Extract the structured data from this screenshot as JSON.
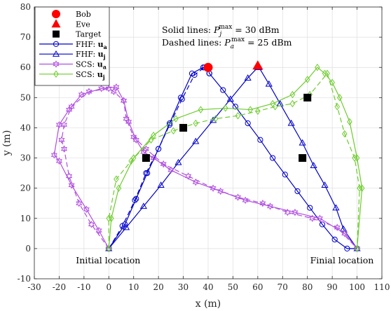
{
  "chart_data": {
    "type": "line",
    "xlabel": "x (m)",
    "ylabel": "y (m)",
    "xlim": [
      -30,
      110
    ],
    "ylim": [
      -10,
      80
    ],
    "xticks": [
      -30,
      -20,
      -10,
      0,
      10,
      20,
      30,
      40,
      50,
      60,
      70,
      80,
      90,
      100,
      110
    ],
    "yticks": [
      -10,
      0,
      10,
      20,
      30,
      40,
      50,
      60,
      70,
      80
    ],
    "grid": true,
    "legend": {
      "placement": "top-left",
      "entries": [
        {
          "key": "bob",
          "label": "Bob"
        },
        {
          "key": "eve",
          "label": "Eve"
        },
        {
          "key": "target",
          "label": "Target"
        },
        {
          "key": "fhf_ua",
          "label": "FHF: u",
          "sub": "a"
        },
        {
          "key": "fhf_uj",
          "label": "FHF: u",
          "sub": "j"
        },
        {
          "key": "scs_ua",
          "label": "SCS: u",
          "sub": "a"
        },
        {
          "key": "scs_uj",
          "label": "SCS: u",
          "sub": "j"
        }
      ]
    },
    "annotations": [
      {
        "prefix": "Solid lines: ",
        "sym": "P",
        "sub": "j",
        "sup": "max",
        "suffix": " = 30 dBm"
      },
      {
        "prefix": "Dashed lines: ",
        "sym": "P",
        "sub": "a",
        "sup": "max",
        "suffix": " = 25 dBm"
      }
    ],
    "location_labels": {
      "initial": {
        "text": "Initial location",
        "x": 0,
        "y": -4
      },
      "final": {
        "text": "Finial location",
        "x": 100,
        "y": -4
      }
    },
    "colors": {
      "fhf": "#0000cc",
      "scs_a": "#b14fe0",
      "scs_j": "#6dcc2c",
      "bob": "#ff0000",
      "eve": "#ff0000",
      "target": "#000000"
    },
    "points": {
      "bob": [
        40,
        60
      ],
      "eve": [
        60,
        60.5
      ],
      "targets": [
        [
          15,
          30
        ],
        [
          30,
          40
        ],
        [
          78,
          30
        ],
        [
          80,
          50
        ]
      ]
    },
    "series": [
      {
        "key": "fhf_ua_solid",
        "color": "#0000cc",
        "marker": "circle",
        "dashed": false,
        "x": [
          0,
          6.5,
          11,
          15.5,
          20,
          24.5,
          29,
          33.5,
          38,
          40,
          40.5,
          46,
          51,
          56,
          61,
          66,
          71,
          76,
          81,
          86,
          91,
          96,
          100
        ],
        "y": [
          0,
          8,
          16.5,
          25,
          33,
          41.5,
          50,
          58,
          60,
          60,
          58,
          52.5,
          47,
          41.5,
          36,
          30,
          24.5,
          19,
          13.5,
          8,
          3,
          0,
          0
        ]
      },
      {
        "key": "fhf_ua_dashed",
        "color": "#0000cc",
        "marker": "circle",
        "dashed": true,
        "x": [
          0,
          5.5,
          10.5,
          15,
          20,
          24.5,
          29.5,
          34.5,
          38.5,
          40,
          40.5
        ],
        "y": [
          0,
          7.5,
          16,
          25,
          33,
          41,
          49.5,
          57.5,
          60,
          60,
          58
        ]
      },
      {
        "key": "fhf_uj_solid",
        "color": "#0000cc",
        "marker": "triangle",
        "dashed": false,
        "x": [
          0,
          7,
          14,
          21,
          28,
          35,
          42,
          49,
          56,
          60,
          60.5,
          64.5,
          69,
          73.5,
          78,
          82.5,
          87,
          91.5,
          94.5,
          100
        ],
        "y": [
          0,
          7,
          14,
          21,
          28.5,
          35.5,
          42.5,
          49.5,
          56.5,
          60,
          60,
          54.5,
          48,
          41.5,
          35,
          27.5,
          21,
          13.5,
          6.5,
          0
        ]
      },
      {
        "key": "scs_ua_solid",
        "color": "#b14fe0",
        "marker": "hexagram",
        "dashed": false,
        "x": [
          0,
          -4,
          -9,
          -15,
          -20,
          -22,
          -20,
          -16,
          -11,
          -3,
          3,
          6,
          8,
          11,
          14,
          18,
          25,
          35,
          45,
          55,
          65,
          75,
          85,
          95,
          100
        ],
        "y": [
          0,
          6,
          13,
          21,
          29,
          31,
          41,
          46,
          51,
          53,
          53.5,
          49,
          42,
          36,
          32,
          30,
          26,
          22,
          19,
          16,
          14,
          12,
          10,
          5,
          0
        ]
      },
      {
        "key": "scs_ua_dashed",
        "color": "#b14fe0",
        "marker": "hexagram",
        "dashed": true,
        "x": [
          0,
          -7,
          -12,
          -16,
          -18,
          -19,
          -18,
          -15,
          -8,
          0,
          2,
          6,
          7,
          10,
          15,
          22,
          32,
          42,
          52,
          62,
          72,
          82,
          92,
          100
        ],
        "y": [
          0,
          8,
          15,
          24,
          33,
          36,
          41,
          47,
          52,
          53,
          52,
          49,
          43,
          37,
          33,
          28,
          24,
          20,
          17,
          15,
          12,
          10,
          7,
          0
        ]
      },
      {
        "key": "scs_uj_solid",
        "color": "#6dcc2c",
        "marker": "diamond",
        "dashed": false,
        "x": [
          0,
          1,
          4,
          10,
          18,
          27,
          37,
          47,
          57,
          66,
          74,
          80,
          84,
          87,
          90,
          93,
          97,
          100,
          102,
          100
        ],
        "y": [
          0,
          10,
          20,
          30,
          37.5,
          43,
          46,
          46.5,
          46,
          48,
          51,
          56,
          60,
          58,
          55,
          50,
          42,
          30,
          20,
          0
        ]
      },
      {
        "key": "scs_uj_dashed",
        "color": "#6dcc2c",
        "marker": "diamond",
        "dashed": true,
        "x": [
          0,
          0,
          3,
          9,
          17,
          26,
          35,
          43,
          52,
          60,
          67,
          74,
          81,
          88,
          92,
          95,
          99,
          101,
          100
        ],
        "y": [
          0,
          10,
          23,
          29,
          36,
          39,
          41.5,
          43,
          44,
          45.5,
          47,
          48,
          51,
          58,
          47,
          38,
          30,
          20,
          0
        ]
      }
    ]
  }
}
